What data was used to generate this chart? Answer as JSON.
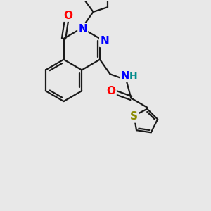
{
  "bg_color": "#e8e8e8",
  "bond_color": "#1a1a1a",
  "bond_width": 1.6,
  "atom_colors": {
    "O": "#ff0000",
    "N": "#0000ff",
    "S": "#8b8b00",
    "H": "#008b8b",
    "C": "#1a1a1a"
  },
  "figsize": [
    3.0,
    3.0
  ],
  "dpi": 100
}
